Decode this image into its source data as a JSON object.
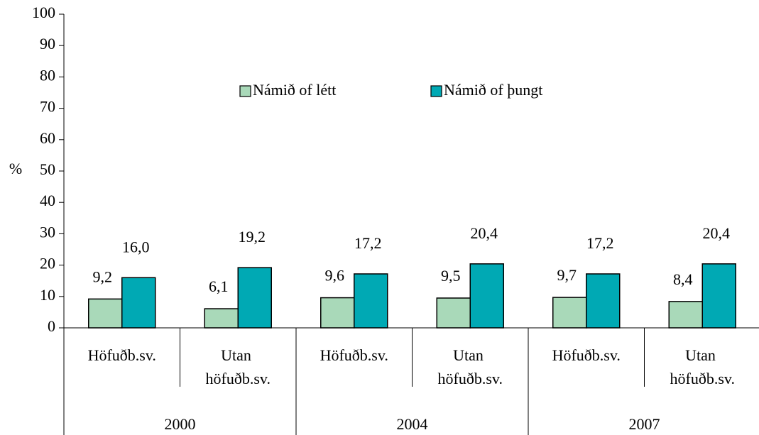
{
  "chart_data": {
    "type": "bar",
    "y_label": "%",
    "categories": [
      "Höfuðb.sv.",
      "Utan höfuðb.sv.",
      "Höfuðb.sv.",
      "Utan höfuðb.sv.",
      "Höfuðb.sv.",
      "Utan höfuðb.sv."
    ],
    "groups": [
      "2000",
      "2004",
      "2007"
    ],
    "series": [
      {
        "name": "Námið of létt",
        "color": "#a9d9b9",
        "values": [
          9.2,
          6.1,
          9.6,
          9.5,
          9.7,
          8.4
        ],
        "value_labels": [
          "9,2",
          "6,1",
          "9,6",
          "9,5",
          "9,7",
          "8,4"
        ]
      },
      {
        "name": "Námið of þungt",
        "color": "#00a9b4",
        "values": [
          16.0,
          19.2,
          17.2,
          20.4,
          17.2,
          20.4
        ],
        "value_labels": [
          "16,0",
          "19,2",
          "17,2",
          "20,4",
          "17,2",
          "20,4"
        ]
      }
    ],
    "ylim": [
      0,
      100
    ],
    "yticks": [
      0,
      10,
      20,
      30,
      40,
      50,
      60,
      70,
      80,
      90,
      100
    ]
  }
}
